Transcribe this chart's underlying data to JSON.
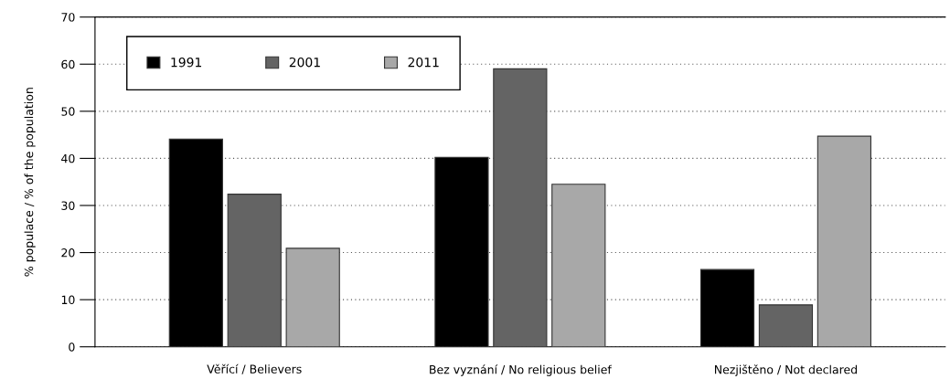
{
  "chart_data": {
    "type": "bar",
    "ylabel": "% populace / % of the population",
    "categories": [
      "Věřící / Believers",
      "Bez vyznání / No religious belief",
      "Nezjištěno / Not declared"
    ],
    "series": [
      {
        "name": "1991",
        "color": "#000000",
        "values": [
          44.1,
          40.2,
          16.4
        ]
      },
      {
        "name": "2001",
        "color": "#646464",
        "values": [
          32.4,
          59.0,
          8.9
        ]
      },
      {
        "name": "2011",
        "color": "#a8a8a8",
        "values": [
          20.9,
          34.5,
          44.7
        ]
      }
    ],
    "ylim": [
      0,
      70
    ],
    "yticks": [
      0,
      10,
      20,
      30,
      40,
      50,
      60,
      70
    ],
    "grid": "y",
    "legend": "top left"
  }
}
